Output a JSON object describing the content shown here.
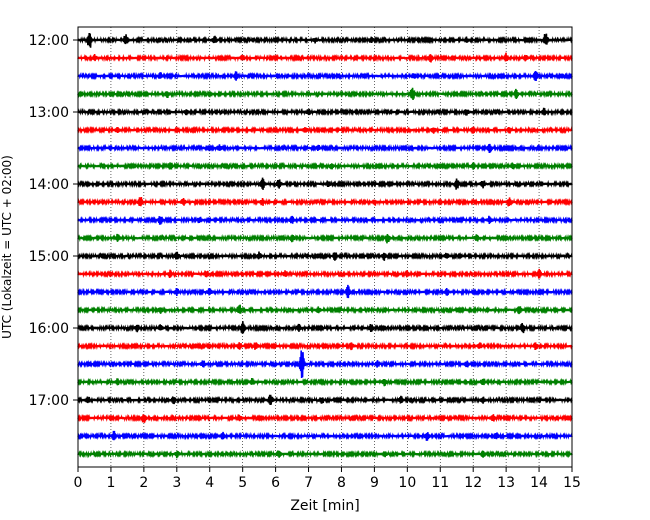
{
  "chart_data": {
    "type": "line",
    "title": "",
    "xlabel": "Zeit  [min]",
    "ylabel": "UTC (Lokalzeit = UTC + 02:00)",
    "xlim": [
      0,
      15
    ],
    "x_ticks": [
      0,
      1,
      2,
      3,
      4,
      5,
      6,
      7,
      8,
      9,
      10,
      11,
      12,
      13,
      14,
      15
    ],
    "x_tick_labels": [
      "0",
      "1",
      "2",
      "3",
      "4",
      "5",
      "6",
      "7",
      "8",
      "9",
      "10",
      "11",
      "12",
      "13",
      "14",
      "15"
    ],
    "y_tick_labels": [
      "12:00",
      "13:00",
      "14:00",
      "15:00",
      "16:00",
      "17:00"
    ],
    "trace_interval_min": 15,
    "grid": "vertical dotted",
    "legend": "none",
    "trace_colors": [
      "#000000",
      "#ff0000",
      "#0000ff",
      "#008000"
    ],
    "traces": [
      {
        "start": "12:00",
        "color": "#000000",
        "events": [
          [
            0.35,
            1.0
          ],
          [
            1.45,
            0.55
          ],
          [
            4.15,
            0.35
          ],
          [
            7.2,
            0.25
          ],
          [
            8.9,
            0.25
          ],
          [
            11.8,
            0.25
          ],
          [
            14.2,
            0.7
          ]
        ]
      },
      {
        "start": "12:15",
        "color": "#ff0000",
        "events": [
          [
            0.5,
            0.3
          ],
          [
            5.0,
            0.35
          ],
          [
            10.7,
            0.45
          ],
          [
            13.0,
            0.45
          ],
          [
            13.6,
            0.3
          ]
        ]
      },
      {
        "start": "12:30",
        "color": "#0000ff",
        "events": [
          [
            2.5,
            0.3
          ],
          [
            4.8,
            0.45
          ],
          [
            10.2,
            0.3
          ],
          [
            13.9,
            0.55
          ]
        ]
      },
      {
        "start": "12:45",
        "color": "#008000",
        "events": [
          [
            2.7,
            0.35
          ],
          [
            10.15,
            0.8
          ],
          [
            13.3,
            0.45
          ]
        ]
      },
      {
        "start": "13:00",
        "color": "#000000",
        "events": [
          [
            3.3,
            0.25
          ],
          [
            7.0,
            0.3
          ],
          [
            11.8,
            0.3
          ],
          [
            14.15,
            0.35
          ]
        ]
      },
      {
        "start": "13:15",
        "color": "#ff0000",
        "events": [
          [
            1.2,
            0.3
          ],
          [
            6.9,
            0.3
          ],
          [
            10.8,
            0.35
          ],
          [
            12.0,
            0.35
          ],
          [
            13.1,
            0.3
          ]
        ]
      },
      {
        "start": "13:30",
        "color": "#0000ff",
        "events": [
          [
            4.3,
            0.35
          ],
          [
            7.3,
            0.25
          ],
          [
            12.5,
            0.45
          ]
        ]
      },
      {
        "start": "13:45",
        "color": "#008000",
        "events": [
          [
            2.8,
            0.45
          ],
          [
            7.7,
            0.3
          ],
          [
            12.0,
            0.3
          ],
          [
            13.2,
            0.35
          ]
        ]
      },
      {
        "start": "14:00",
        "color": "#000000",
        "events": [
          [
            5.6,
            0.65
          ],
          [
            6.1,
            0.45
          ],
          [
            7.6,
            0.3
          ],
          [
            11.5,
            0.55
          ],
          [
            12.3,
            0.4
          ]
        ]
      },
      {
        "start": "14:15",
        "color": "#ff0000",
        "events": [
          [
            1.9,
            0.6
          ],
          [
            3.2,
            0.35
          ],
          [
            5.6,
            0.35
          ],
          [
            9.0,
            0.35
          ],
          [
            13.1,
            0.55
          ]
        ]
      },
      {
        "start": "14:30",
        "color": "#0000ff",
        "events": [
          [
            2.5,
            0.5
          ],
          [
            3.7,
            0.35
          ],
          [
            6.5,
            0.35
          ],
          [
            12.5,
            0.4
          ]
        ]
      },
      {
        "start": "14:45",
        "color": "#008000",
        "events": [
          [
            1.2,
            0.35
          ],
          [
            6.5,
            0.35
          ],
          [
            9.4,
            0.55
          ],
          [
            12.1,
            0.35
          ]
        ]
      },
      {
        "start": "15:00",
        "color": "#000000",
        "events": [
          [
            3.0,
            0.4
          ],
          [
            5.5,
            0.4
          ],
          [
            7.8,
            0.45
          ],
          [
            9.3,
            0.4
          ],
          [
            11.2,
            0.35
          ]
        ]
      },
      {
        "start": "15:15",
        "color": "#ff0000",
        "events": [
          [
            2.8,
            0.35
          ],
          [
            3.9,
            0.35
          ],
          [
            6.3,
            0.35
          ],
          [
            10.0,
            0.35
          ],
          [
            14.0,
            0.45
          ]
        ]
      },
      {
        "start": "15:30",
        "color": "#0000ff",
        "events": [
          [
            3.0,
            0.35
          ],
          [
            4.0,
            0.35
          ],
          [
            8.2,
            0.7
          ],
          [
            11.2,
            0.35
          ]
        ]
      },
      {
        "start": "15:45",
        "color": "#008000",
        "events": [
          [
            2.5,
            0.35
          ],
          [
            4.9,
            0.55
          ],
          [
            7.3,
            0.35
          ],
          [
            13.4,
            0.5
          ]
        ]
      },
      {
        "start": "16:00",
        "color": "#000000",
        "events": [
          [
            1.8,
            0.4
          ],
          [
            2.5,
            0.4
          ],
          [
            5.0,
            0.65
          ],
          [
            6.7,
            0.35
          ],
          [
            8.9,
            0.35
          ],
          [
            13.5,
            0.55
          ]
        ]
      },
      {
        "start": "16:15",
        "color": "#ff0000",
        "events": [
          [
            4.9,
            0.45
          ],
          [
            5.4,
            0.45
          ],
          [
            8.3,
            0.35
          ],
          [
            12.2,
            0.35
          ],
          [
            13.9,
            0.35
          ]
        ]
      },
      {
        "start": "16:30",
        "color": "#0000ff",
        "events": [
          [
            3.8,
            0.35
          ],
          [
            6.8,
            1.6
          ],
          [
            9.1,
            0.35
          ],
          [
            11.8,
            0.35
          ]
        ]
      },
      {
        "start": "16:45",
        "color": "#008000",
        "events": [
          [
            1.2,
            0.35
          ],
          [
            5.3,
            0.35
          ],
          [
            9.3,
            0.35
          ],
          [
            12.3,
            0.35
          ]
        ]
      },
      {
        "start": "17:00",
        "color": "#000000",
        "events": [
          [
            0.3,
            0.35
          ],
          [
            2.9,
            0.35
          ],
          [
            5.85,
            0.55
          ],
          [
            7.4,
            0.35
          ],
          [
            9.8,
            0.35
          ],
          [
            12.3,
            0.3
          ]
        ]
      },
      {
        "start": "17:15",
        "color": "#ff0000",
        "events": [
          [
            2.0,
            0.55
          ],
          [
            4.9,
            0.35
          ],
          [
            12.6,
            0.35
          ]
        ]
      },
      {
        "start": "17:30",
        "color": "#0000ff",
        "events": [
          [
            1.1,
            0.5
          ],
          [
            4.4,
            0.35
          ],
          [
            10.6,
            0.45
          ],
          [
            12.7,
            0.35
          ]
        ]
      },
      {
        "start": "17:45",
        "color": "#008000",
        "events": [
          [
            3.0,
            0.35
          ],
          [
            6.1,
            0.35
          ],
          [
            9.3,
            0.3
          ],
          [
            12.3,
            0.35
          ]
        ]
      }
    ]
  }
}
